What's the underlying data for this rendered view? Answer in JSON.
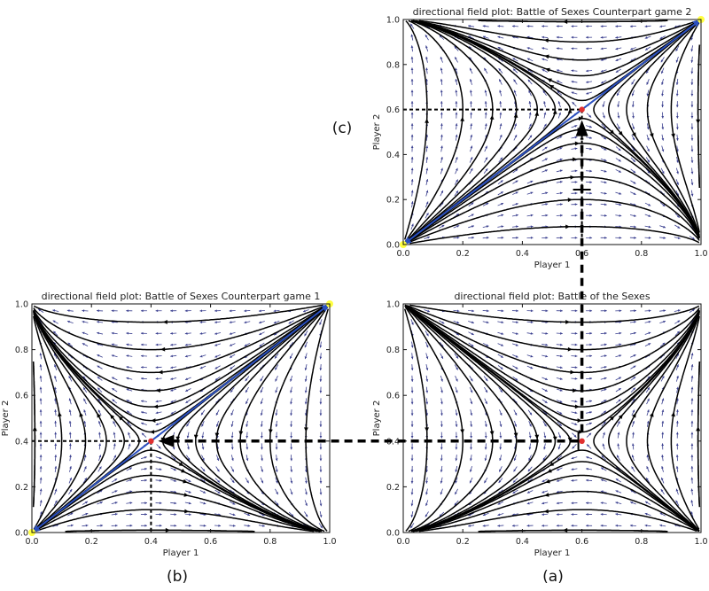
{
  "colors": {
    "background": "#ffffff",
    "trajectory": "#000000",
    "quiver": "#3a3f8f",
    "diagonal": "#2a4fbf",
    "equilibrium": "#e03030",
    "corner_marker": "#ffff40",
    "guide_line": "#000000"
  },
  "labels": {
    "player1": "Player 1",
    "player2": "Player 2"
  },
  "chart_data": [
    {
      "id": "c",
      "type": "streamplot",
      "panel_label": "(c)",
      "title": "directional field plot: Battle of Sexes Counterpart game 2",
      "xlabel": "Player 1",
      "ylabel": "Player 2",
      "xlim": [
        0,
        1
      ],
      "ylim": [
        0,
        1
      ],
      "xticks": [
        "0.0",
        "0.2",
        "0.4",
        "0.6",
        "0.8",
        "1.0"
      ],
      "yticks": [
        "0.0",
        "0.2",
        "0.4",
        "0.6",
        "0.8",
        "1.0"
      ],
      "field": "diverging",
      "equilibrium": [
        0.6,
        0.6
      ],
      "corner_markers": [
        [
          0,
          0
        ],
        [
          1,
          1
        ]
      ],
      "diagonal": true,
      "guide_lines": "dotted lines at x=0.6 and y=0.6 to the axes"
    },
    {
      "id": "b",
      "type": "streamplot",
      "panel_label": "(b)",
      "title": "directional field plot: Battle of Sexes Counterpart game 1",
      "xlabel": "Player 1",
      "ylabel": "Player 2",
      "xlim": [
        0,
        1
      ],
      "ylim": [
        0,
        1
      ],
      "xticks": [
        "0.0",
        "0.2",
        "0.4",
        "0.6",
        "0.8",
        "1.0"
      ],
      "yticks": [
        "0.0",
        "0.2",
        "0.4",
        "0.6",
        "0.8",
        "1.0"
      ],
      "field": "diverging",
      "equilibrium": [
        0.4,
        0.4
      ],
      "corner_markers": [
        [
          0,
          0
        ],
        [
          1,
          1
        ]
      ],
      "diagonal": true,
      "guide_lines": "dotted lines at x=0.4 and y=0.4 to the axes"
    },
    {
      "id": "a",
      "type": "streamplot",
      "panel_label": "(a)",
      "title": "directional field plot: Battle of the Sexes",
      "xlabel": "Player 1",
      "ylabel": "Player 2",
      "xlim": [
        0,
        1
      ],
      "ylim": [
        0,
        1
      ],
      "xticks": [
        "0.0",
        "0.2",
        "0.4",
        "0.6",
        "0.8",
        "1.0"
      ],
      "yticks": [
        "0.0",
        "0.2",
        "0.4",
        "0.6",
        "0.8",
        "1.0"
      ],
      "field": "saddle",
      "equilibrium": [
        0.6,
        0.4
      ],
      "corner_markers": [],
      "diagonal": false,
      "guide_lines": "dashed lines at x=0.6 and y=0.4"
    }
  ],
  "connectors": [
    {
      "from": "a",
      "to": "b",
      "note": "horizontal dashed arrow from the (a) equilibrium toward the (b) equilibrium"
    },
    {
      "from": "a",
      "to": "c",
      "note": "vertical dashed arrow from the (a) equilibrium toward the (c) equilibrium"
    }
  ]
}
